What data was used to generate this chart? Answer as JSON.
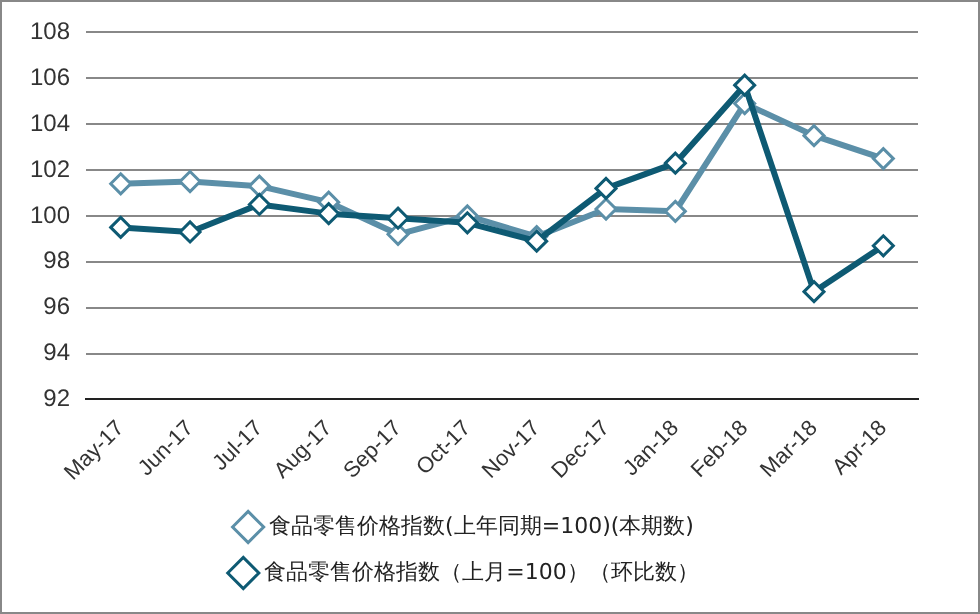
{
  "chart_data": {
    "type": "line",
    "categories": [
      "May-17",
      "Jun-17",
      "Jul-17",
      "Aug-17",
      "Sep-17",
      "Oct-17",
      "Nov-17",
      "Dec-17",
      "Jan-18",
      "Feb-18",
      "Mar-18",
      "Apr-18"
    ],
    "series": [
      {
        "name": "食品零售价格指数(上年同期=100)(本期数)",
        "color": "#5b8fa8",
        "values": [
          101.4,
          101.5,
          101.3,
          100.6,
          99.2,
          100.0,
          99.1,
          100.3,
          100.2,
          104.9,
          103.5,
          102.5
        ]
      },
      {
        "name": "食品零售价格指数（上月=100）（环比数）",
        "color": "#0e5a73",
        "values": [
          99.5,
          99.3,
          100.5,
          100.1,
          99.9,
          99.7,
          98.9,
          101.2,
          102.3,
          105.7,
          96.7,
          98.7
        ]
      }
    ],
    "ylim": [
      92,
      108
    ],
    "yticks": [
      92,
      94,
      96,
      98,
      100,
      102,
      104,
      106,
      108
    ],
    "grid": "y",
    "legend": "bottom",
    "marker": "diamond",
    "line_style": "solid"
  }
}
